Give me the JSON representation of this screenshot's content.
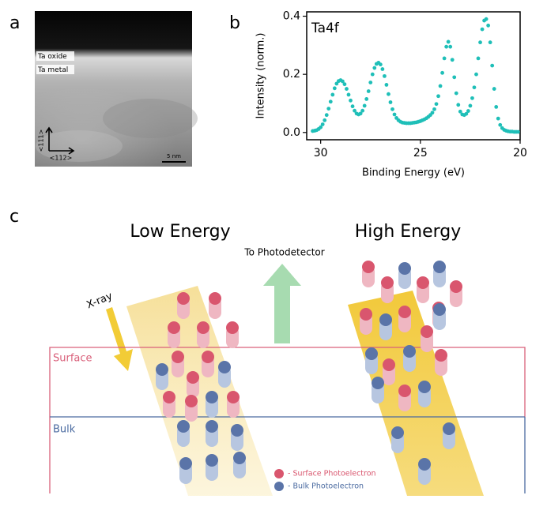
{
  "panel_labels": [
    "a",
    "b",
    "c"
  ],
  "micrograph": {
    "layers": [
      "Ta oxide",
      "Ta metal"
    ],
    "axes": [
      "<111>",
      "<112>"
    ],
    "scale_bar": "5 nm"
  },
  "chart_data": {
    "type": "scatter",
    "annotation": "Ta4f",
    "x_label": "Binding Energy (eV)",
    "y_label": "Intensity (norm.)",
    "color": "#1fbfb8",
    "xlim": [
      30.7,
      20
    ],
    "ylim": [
      -0.025,
      0.415
    ],
    "xticks": [
      30,
      25,
      20
    ],
    "yticks": [
      {
        "value": 0,
        "label": "0.0"
      },
      {
        "value": 0.2,
        "label": "0.2"
      },
      {
        "value": 0.4,
        "label": "0.4"
      }
    ],
    "x": [
      30.4,
      30.3,
      30.2,
      30.1,
      30.0,
      29.9,
      29.8,
      29.7,
      29.6,
      29.5,
      29.4,
      29.3,
      29.2,
      29.1,
      29.0,
      28.9,
      28.8,
      28.7,
      28.6,
      28.5,
      28.4,
      28.3,
      28.2,
      28.1,
      28.0,
      27.9,
      27.8,
      27.7,
      27.6,
      27.5,
      27.4,
      27.3,
      27.2,
      27.1,
      27.0,
      26.9,
      26.8,
      26.7,
      26.6,
      26.5,
      26.4,
      26.3,
      26.2,
      26.1,
      26.0,
      25.9,
      25.8,
      25.7,
      25.6,
      25.5,
      25.4,
      25.3,
      25.2,
      25.1,
      25.0,
      24.9,
      24.8,
      24.7,
      24.6,
      24.5,
      24.4,
      24.3,
      24.2,
      24.1,
      24.0,
      23.9,
      23.8,
      23.7,
      23.6,
      23.5,
      23.4,
      23.3,
      23.2,
      23.1,
      23.0,
      22.9,
      22.8,
      22.7,
      22.6,
      22.5,
      22.4,
      22.3,
      22.2,
      22.1,
      22.0,
      21.9,
      21.8,
      21.7,
      21.6,
      21.5,
      21.4,
      21.3,
      21.2,
      21.1,
      21.0,
      20.9,
      20.8,
      20.7,
      20.6,
      20.5,
      20.4,
      20.3,
      20.2,
      20.1
    ],
    "values": [
      0.005,
      0.006,
      0.008,
      0.012,
      0.018,
      0.028,
      0.042,
      0.06,
      0.082,
      0.106,
      0.13,
      0.152,
      0.168,
      0.177,
      0.18,
      0.176,
      0.166,
      0.15,
      0.13,
      0.11,
      0.09,
      0.075,
      0.065,
      0.062,
      0.065,
      0.075,
      0.092,
      0.115,
      0.142,
      0.172,
      0.2,
      0.222,
      0.236,
      0.24,
      0.234,
      0.218,
      0.194,
      0.164,
      0.132,
      0.104,
      0.08,
      0.062,
      0.05,
      0.042,
      0.037,
      0.034,
      0.033,
      0.032,
      0.032,
      0.032,
      0.033,
      0.034,
      0.035,
      0.037,
      0.039,
      0.042,
      0.045,
      0.049,
      0.054,
      0.06,
      0.068,
      0.08,
      0.098,
      0.125,
      0.16,
      0.205,
      0.255,
      0.295,
      0.312,
      0.295,
      0.25,
      0.19,
      0.135,
      0.095,
      0.072,
      0.062,
      0.06,
      0.064,
      0.074,
      0.092,
      0.118,
      0.155,
      0.2,
      0.255,
      0.31,
      0.355,
      0.385,
      0.39,
      0.368,
      0.31,
      0.23,
      0.15,
      0.088,
      0.048,
      0.026,
      0.015,
      0.009,
      0.006,
      0.004,
      0.003,
      0.003,
      0.002,
      0.002,
      0.002
    ]
  },
  "diagram": {
    "low": "Low Energy",
    "high": "High Energy",
    "detector": "To Photodetector",
    "xray": "X-ray",
    "surface": "Surface",
    "bulk": "Bulk",
    "legend": [
      "- Surface Photoelectron",
      "- Bulk Photoelectron"
    ]
  }
}
